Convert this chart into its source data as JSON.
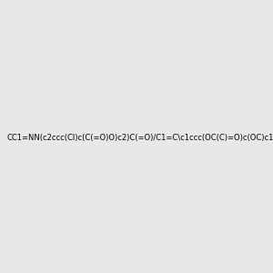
{
  "smiles": "CC1=NN(c2ccc(Cl)c(C(=O)O)c2)C(=O)/C1=C\\c1ccc(OC(C)=O)c(OC)c1",
  "image_size": 300,
  "background_color": "#e8e8e8",
  "title": ""
}
